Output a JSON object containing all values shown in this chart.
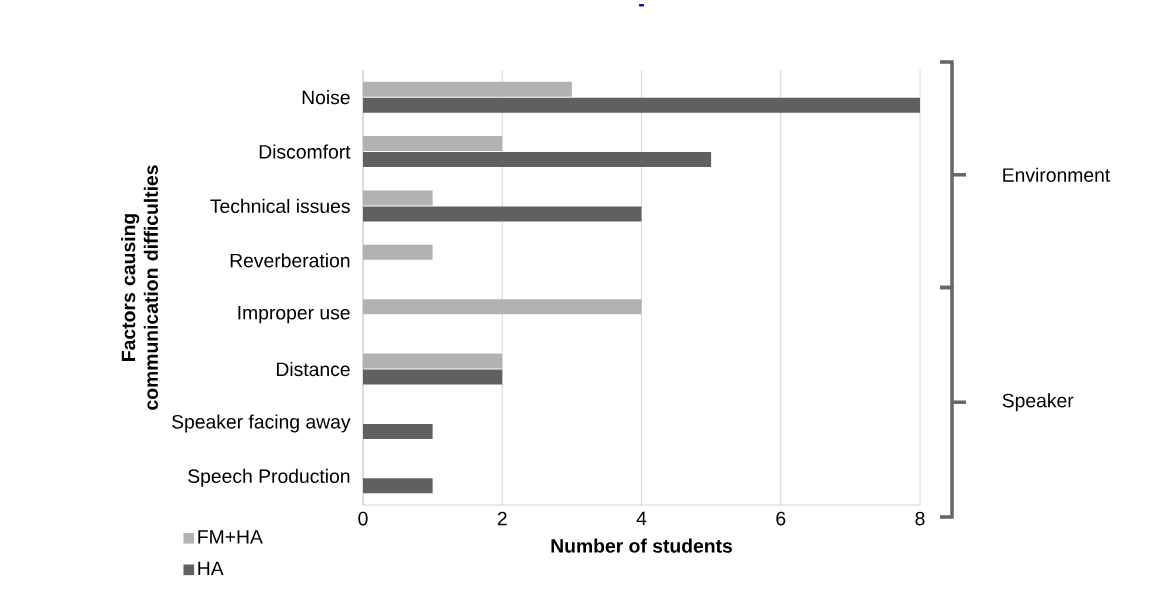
{
  "chart_data": {
    "type": "bar",
    "orientation": "horizontal",
    "title": "-",
    "xlabel": "Number of students",
    "ylabel": "Factors causing communication difficulties",
    "categories": [
      "Noise",
      "Discomfort",
      "Technical issues",
      "Reverberation",
      "Improper use",
      "Distance",
      "Speaker facing away",
      "Speech Production"
    ],
    "series": [
      {
        "name": "FM+HA",
        "color": "#b2b2b2",
        "values": [
          3,
          2,
          1,
          1,
          4,
          2,
          null,
          null
        ]
      },
      {
        "name": "HA",
        "color": "#606060",
        "values": [
          8,
          5,
          4,
          null,
          null,
          2,
          1,
          1
        ]
      }
    ],
    "xlim": [
      0,
      8
    ],
    "xticks": [
      0,
      2,
      4,
      6,
      8
    ],
    "grid": "x",
    "legend": "bottom left",
    "annotations": [
      "Environment",
      "Speaker"
    ]
  }
}
